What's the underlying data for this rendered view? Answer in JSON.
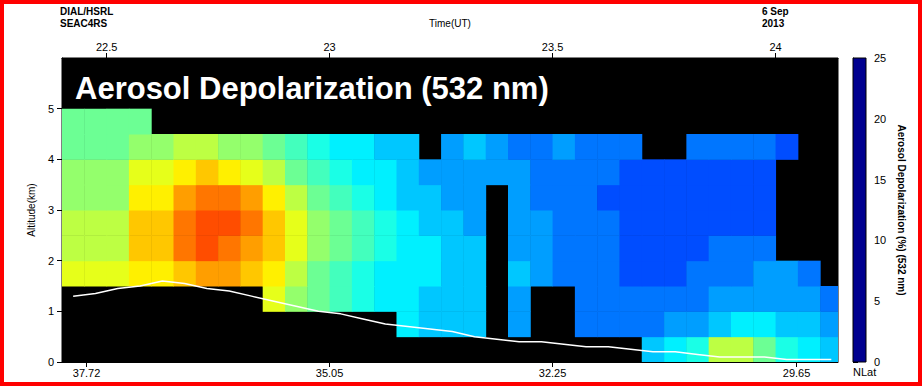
{
  "chart_data": {
    "type": "heatmap",
    "title": "Aerosol Depolarization (532 nm)",
    "annotations": {
      "top_left": [
        "DIAL/HSRL",
        "SEAC4RS"
      ],
      "top_right": [
        "6 Sep",
        "2013"
      ]
    },
    "xlabel": "Time(UT)",
    "ylabel": "Altitude(km)",
    "xlim": [
      22.4,
      24.14
    ],
    "xticks": [
      22.5,
      23,
      23.5,
      24
    ],
    "ylim": [
      0,
      6
    ],
    "yticks": [
      0,
      1,
      2,
      3,
      4,
      5
    ],
    "x2label": "NLat",
    "x2ticks": [
      {
        "value": 22.455,
        "label": "37.72"
      },
      {
        "value": 23.0,
        "label": "35.05"
      },
      {
        "value": 23.5,
        "label": "32.25"
      },
      {
        "value": 24.047,
        "label": "29.65"
      }
    ],
    "grid": false,
    "x": [
      22.425,
      22.475,
      22.525,
      22.575,
      22.625,
      22.675,
      22.725,
      22.775,
      22.825,
      22.875,
      22.925,
      22.975,
      23.025,
      23.075,
      23.125,
      23.175,
      23.225,
      23.275,
      23.325,
      23.375,
      23.425,
      23.475,
      23.525,
      23.575,
      23.625,
      23.675,
      23.725,
      23.775,
      23.825,
      23.875,
      23.925,
      23.975,
      24.025,
      24.075,
      24.125
    ],
    "y": [
      0.25,
      0.75,
      1.25,
      1.75,
      2.25,
      2.75,
      3.25,
      3.75,
      4.25,
      4.75
    ],
    "z": [
      [
        null,
        null,
        null,
        null,
        null,
        null,
        null,
        null,
        null,
        null,
        null,
        null,
        null,
        null,
        null,
        null,
        null,
        null,
        null,
        null,
        null,
        null,
        null,
        null,
        null,
        null,
        8,
        9,
        10,
        14,
        14,
        12,
        10,
        9,
        8
      ],
      [
        null,
        null,
        null,
        null,
        null,
        null,
        null,
        null,
        null,
        null,
        null,
        null,
        null,
        null,
        null,
        9,
        8,
        8,
        8,
        null,
        7,
        null,
        null,
        6,
        6,
        6,
        6,
        7,
        7,
        8,
        9,
        9,
        8,
        8,
        7
      ],
      [
        null,
        null,
        null,
        null,
        null,
        null,
        null,
        null,
        null,
        15,
        13,
        12,
        11,
        10,
        9,
        9,
        8,
        8,
        8,
        null,
        7,
        null,
        null,
        6,
        6,
        6,
        6,
        6,
        6,
        7,
        7,
        7,
        7,
        7,
        6
      ],
      [
        15,
        15,
        15,
        16,
        16,
        17,
        18,
        18,
        17,
        16,
        14,
        12,
        11,
        10,
        9,
        9,
        9,
        8,
        8,
        null,
        8,
        7,
        6,
        6,
        6,
        5,
        5,
        5,
        6,
        6,
        6,
        7,
        7,
        6,
        null
      ],
      [
        14,
        14,
        14,
        17,
        17,
        19,
        20,
        19,
        18,
        17,
        15,
        13,
        12,
        11,
        10,
        9,
        9,
        8,
        8,
        null,
        7,
        7,
        6,
        6,
        6,
        5,
        5,
        5,
        5,
        6,
        6,
        6,
        null,
        null,
        null
      ],
      [
        14,
        14,
        14,
        17,
        17,
        19,
        20,
        20,
        19,
        17,
        15,
        13,
        12,
        11,
        10,
        9,
        8,
        8,
        7,
        null,
        7,
        7,
        6,
        6,
        6,
        5,
        5,
        5,
        5,
        5,
        5,
        5,
        null,
        null,
        null
      ],
      [
        13,
        13,
        13,
        16,
        16,
        18,
        19,
        19,
        18,
        16,
        14,
        12,
        11,
        10,
        9,
        8,
        8,
        7,
        7,
        null,
        7,
        6,
        6,
        6,
        5,
        5,
        5,
        5,
        5,
        5,
        5,
        5,
        null,
        null,
        null
      ],
      [
        13,
        13,
        13,
        15,
        15,
        16,
        17,
        16,
        15,
        14,
        12,
        11,
        10,
        9,
        9,
        8,
        7,
        7,
        7,
        7,
        7,
        6,
        6,
        6,
        6,
        5,
        5,
        5,
        5,
        5,
        5,
        5,
        null,
        null,
        null
      ],
      [
        12,
        12,
        12,
        13,
        13,
        14,
        14,
        13,
        13,
        12,
        11,
        10,
        9,
        9,
        8,
        8,
        null,
        7,
        8,
        7,
        6,
        6,
        7,
        6,
        6,
        6,
        null,
        null,
        6,
        6,
        6,
        6,
        5,
        null,
        null
      ],
      [
        12,
        12,
        12,
        12,
        null,
        null,
        null,
        null,
        null,
        null,
        null,
        null,
        null,
        null,
        null,
        null,
        null,
        null,
        null,
        null,
        null,
        null,
        null,
        null,
        null,
        null,
        null,
        null,
        null,
        null,
        null,
        null,
        null,
        null,
        null
      ]
    ],
    "surface": [
      1.3,
      1.35,
      1.45,
      1.5,
      1.6,
      1.55,
      1.45,
      1.4,
      1.3,
      1.2,
      1.1,
      1.0,
      0.95,
      0.85,
      0.75,
      0.7,
      0.65,
      0.6,
      0.5,
      0.45,
      0.4,
      0.4,
      0.35,
      0.3,
      0.3,
      0.25,
      0.2,
      0.2,
      0.15,
      0.1,
      0.1,
      0.1,
      0.05,
      0.05,
      0.05
    ],
    "colorbar": {
      "range": [
        0,
        25
      ],
      "ticks": [
        0,
        5,
        10,
        15,
        20,
        25
      ],
      "label": "Aerosol Depolarization (%) (532 nm)"
    }
  }
}
